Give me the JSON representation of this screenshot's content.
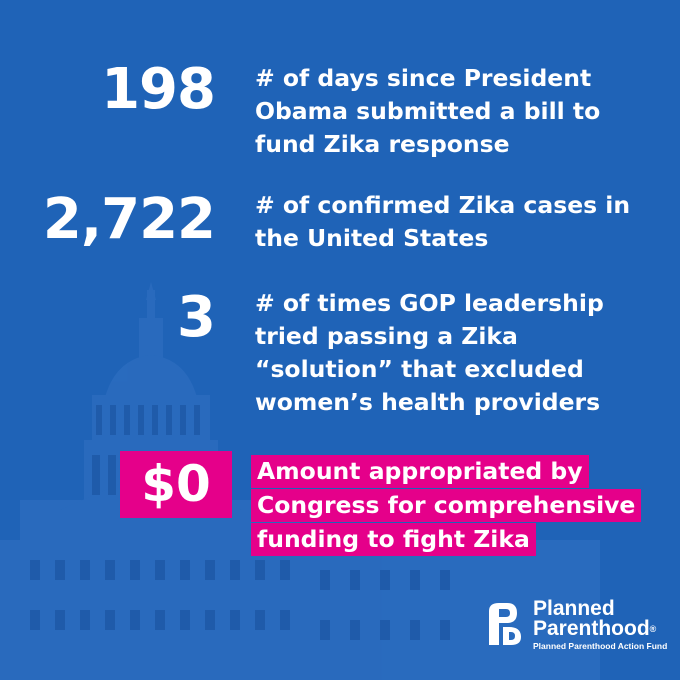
{
  "stats": [
    {
      "number": "198",
      "lines": [
        "# of days since President",
        "Obama submitted a bill to",
        "fund Zika response"
      ]
    },
    {
      "number": "2,722",
      "lines": [
        "# of confirmed Zika cases in",
        "the United States"
      ]
    },
    {
      "number": "3",
      "lines": [
        "# of times GOP leadership",
        "tried passing a Zika",
        "“solution” that excluded",
        "women’s health providers"
      ]
    },
    {
      "number": "$0",
      "lines": [
        "Amount appropriated by",
        "Congress for comprehensive",
        "funding to fight Zika"
      ]
    }
  ],
  "logo": {
    "name_line1": "Planned",
    "name_line2": "Parenthood",
    "registered": "®",
    "subtitle": "Planned Parenthood Action Fund",
    "icon": "pp-logo-mark"
  },
  "colors": {
    "background": "#1f63b7",
    "highlight": "#e5008a",
    "text": "#ffffff"
  }
}
